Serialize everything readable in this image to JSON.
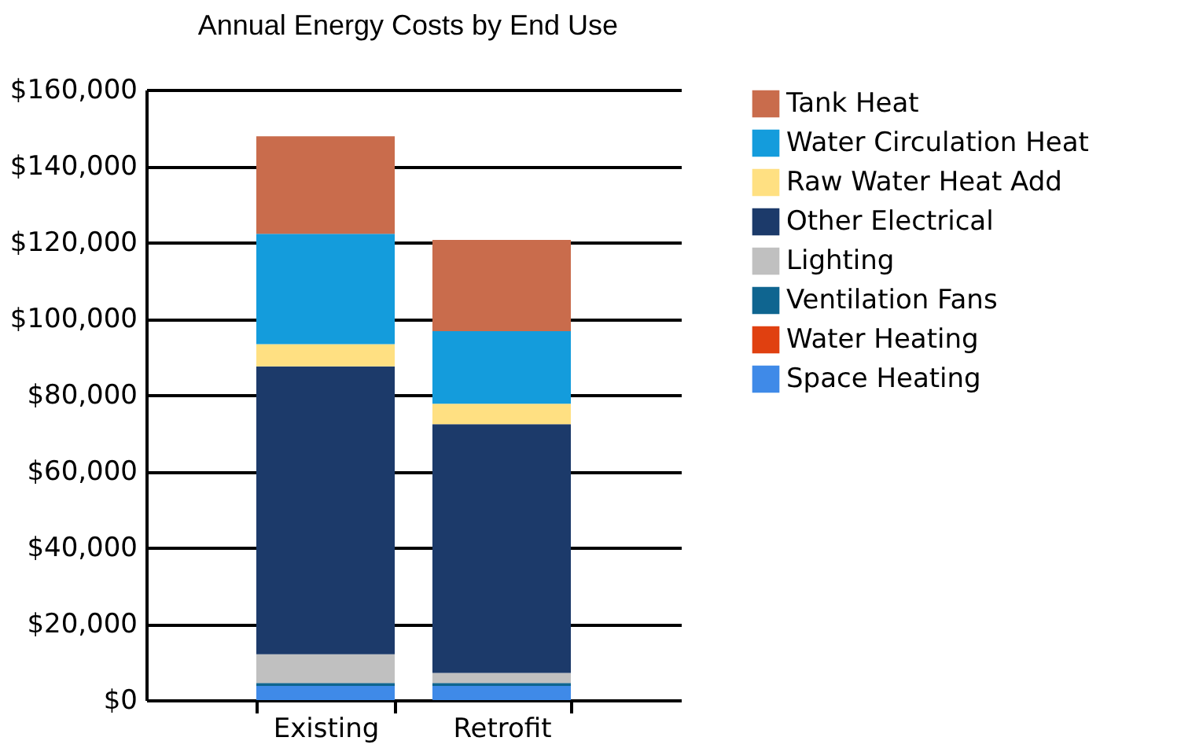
{
  "chart_data": {
    "type": "bar",
    "title": "Annual Energy Costs by End Use",
    "categories": [
      "Existing",
      "Retrofit"
    ],
    "stacked": true,
    "series": [
      {
        "name": "Space Heating",
        "color": "#3f8ae8",
        "values": [
          3700,
          3700
        ]
      },
      {
        "name": "Water Heating",
        "color": "#e04010",
        "values": [
          0,
          0
        ]
      },
      {
        "name": "Ventilation Fans",
        "color": "#0f6590",
        "values": [
          800,
          800
        ]
      },
      {
        "name": "Lighting",
        "color": "#c0c0c0",
        "values": [
          7500,
          2600
        ]
      },
      {
        "name": "Other Electrical",
        "color": "#1c3a6a",
        "values": [
          75500,
          65200
        ]
      },
      {
        "name": "Raw Water Heat Add",
        "color": "#ffe082",
        "values": [
          5800,
          5400
        ]
      },
      {
        "name": "Water Circulation Heat",
        "color": "#149cdc",
        "values": [
          28900,
          19000
        ]
      },
      {
        "name": "Tank Heat",
        "color": "#c96c4c",
        "values": [
          25600,
          23900
        ]
      }
    ],
    "ylim": [
      0,
      160000
    ],
    "yticks": [
      {
        "value": 0,
        "label": "$0"
      },
      {
        "value": 20000,
        "label": "$20,000"
      },
      {
        "value": 40000,
        "label": "$40,000"
      },
      {
        "value": 60000,
        "label": "$60,000"
      },
      {
        "value": 80000,
        "label": "$80,000"
      },
      {
        "value": 100000,
        "label": "$100,000"
      },
      {
        "value": 120000,
        "label": "$120,000"
      },
      {
        "value": 140000,
        "label": "$140,000"
      },
      {
        "value": 160000,
        "label": "$160,000"
      }
    ],
    "grid": "y",
    "legend": "right"
  }
}
